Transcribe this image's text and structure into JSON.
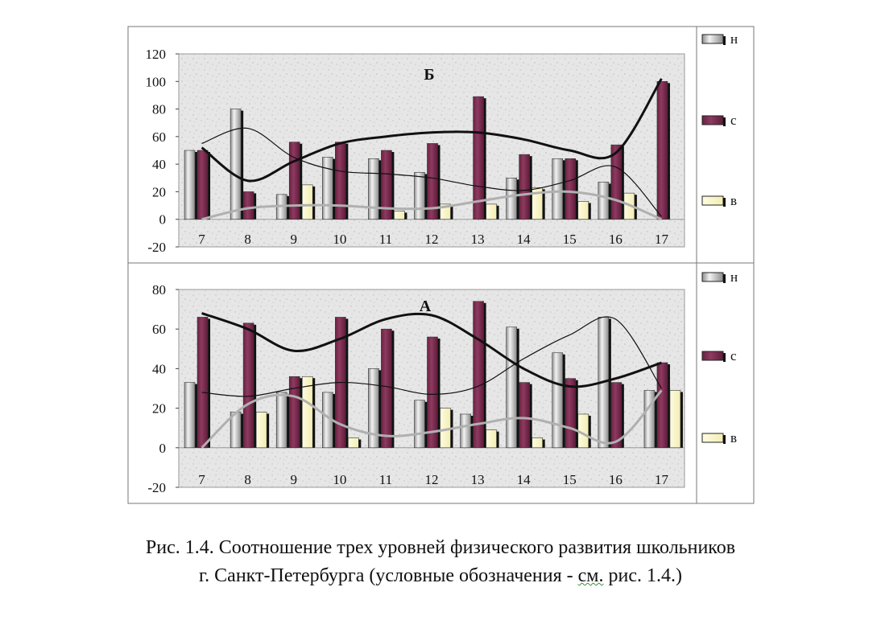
{
  "caption": {
    "line1": "Рис. 1.4. Соотношение трех уровней физического развития школьников",
    "line2_pre": "г. Санкт-Петербурга (условные обозначения - ",
    "line2_link": "см.",
    "line2_post": " рис. 1.4.)"
  },
  "colors": {
    "н": "#b8b8b8",
    "с": "#7b2a4e",
    "в": "#fbf7c6",
    "plot_bg": "#e4e4e4",
    "curve_dark": "#111111",
    "curve_gray": "#b0b0b0"
  },
  "chart_data": [
    {
      "type": "bar",
      "title": "Б",
      "categories": [
        "7",
        "8",
        "9",
        "10",
        "11",
        "12",
        "13",
        "14",
        "15",
        "16",
        "17"
      ],
      "ylim": [
        -20,
        120
      ],
      "yticks": [
        "-20",
        "0",
        "20",
        "40",
        "60",
        "80",
        "100",
        "120"
      ],
      "legend_position": "right",
      "series": [
        {
          "name": "н",
          "values": [
            50,
            80,
            18,
            45,
            44,
            34,
            0,
            30,
            44,
            27,
            0
          ]
        },
        {
          "name": "с",
          "values": [
            50,
            20,
            56,
            56,
            50,
            55,
            89,
            47,
            44,
            54,
            100
          ]
        },
        {
          "name": "в",
          "values": [
            0,
            0,
            25,
            0,
            6,
            11,
            11,
            23,
            13,
            19,
            0
          ]
        }
      ],
      "trend_lines": {
        "с": [
          52,
          28,
          42,
          55,
          60,
          63,
          63,
          58,
          50,
          48,
          102
        ],
        "н": [
          55,
          66,
          45,
          35,
          33,
          30,
          24,
          21,
          28,
          38,
          2
        ],
        "в": [
          0,
          8,
          10,
          10,
          8,
          8,
          13,
          18,
          20,
          14,
          0
        ]
      }
    },
    {
      "type": "bar",
      "title": "А",
      "categories": [
        "7",
        "8",
        "9",
        "10",
        "11",
        "12",
        "13",
        "14",
        "15",
        "16",
        "17"
      ],
      "ylim": [
        -20,
        80
      ],
      "yticks": [
        "-20",
        "0",
        "20",
        "40",
        "60",
        "80"
      ],
      "legend_position": "right",
      "series": [
        {
          "name": "н",
          "values": [
            33,
            18,
            28,
            28,
            40,
            24,
            17,
            61,
            48,
            66,
            29
          ]
        },
        {
          "name": "с",
          "values": [
            66,
            63,
            36,
            66,
            60,
            56,
            74,
            33,
            35,
            33,
            43
          ]
        },
        {
          "name": "в",
          "values": [
            0,
            18,
            36,
            5,
            0,
            20,
            9,
            5,
            17,
            0,
            29
          ]
        }
      ],
      "trend_lines": {
        "с": [
          68,
          60,
          49,
          55,
          65,
          67,
          55,
          40,
          31,
          35,
          43
        ],
        "н": [
          28,
          26,
          30,
          33,
          31,
          27,
          31,
          45,
          57,
          65,
          30
        ],
        "в": [
          0,
          22,
          26,
          12,
          6,
          8,
          12,
          15,
          10,
          3,
          29
        ]
      }
    }
  ]
}
